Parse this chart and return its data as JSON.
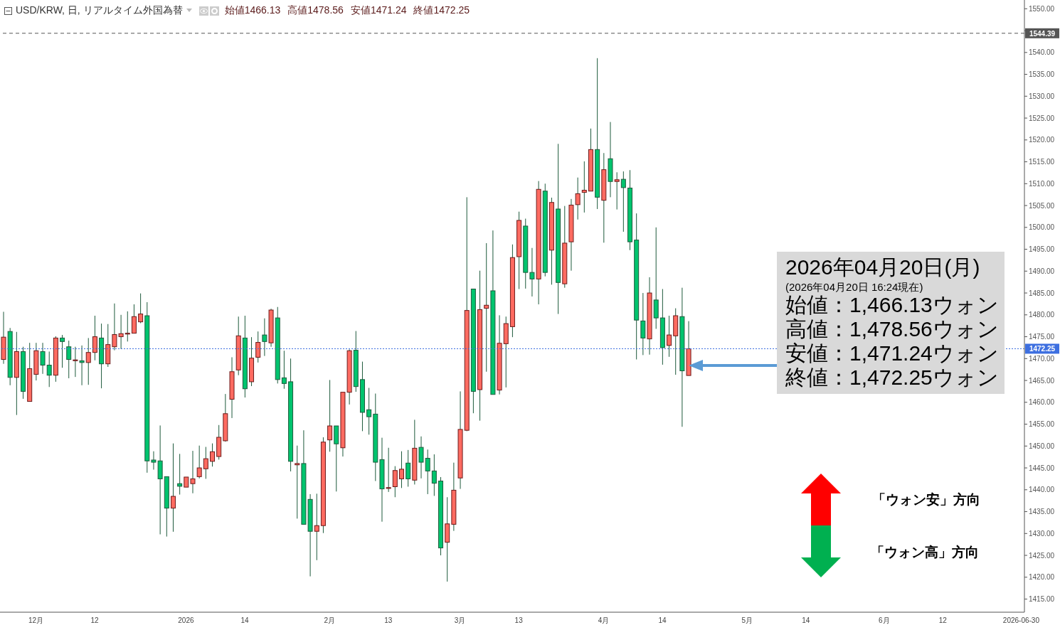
{
  "chart_data": {
    "type": "candlestick",
    "title": "USD/KRW, 日, リアルタイム外国為替",
    "categories": [
      null,
      null,
      null,
      null,
      null,
      "12月",
      null,
      null,
      null,
      null,
      null,
      null,
      null,
      null,
      "12",
      null,
      null,
      null,
      null,
      null,
      null,
      null,
      null,
      null,
      null,
      null,
      null,
      null,
      "2026",
      null,
      null,
      null,
      null,
      null,
      null,
      null,
      null,
      "14",
      null,
      null,
      null,
      null,
      null,
      null,
      null,
      null,
      null,
      null,
      null,
      null,
      "2月",
      null,
      null,
      null,
      null,
      null,
      null,
      null,
      null,
      "13",
      null,
      null,
      null,
      null,
      null,
      null,
      null,
      null,
      null,
      null,
      "3月",
      null,
      null,
      null,
      null,
      null,
      null,
      null,
      null,
      "13",
      null,
      null,
      null,
      null,
      null,
      null,
      null,
      null,
      null,
      null,
      null,
      null,
      "4月",
      null,
      null,
      null,
      null,
      null,
      null,
      null,
      null,
      "14",
      null,
      null,
      null,
      null,
      null,
      null,
      null,
      null,
      null,
      null,
      null,
      null,
      "5月",
      null,
      null,
      null,
      null,
      null,
      null,
      null,
      null,
      "14",
      null,
      null,
      null,
      null,
      null,
      null,
      null,
      null,
      null,
      null,
      null,
      "6月",
      null,
      null,
      null,
      null,
      null,
      null,
      null,
      null,
      "12",
      null,
      null,
      null,
      null,
      null,
      null,
      null,
      null,
      null,
      null,
      null,
      "2026-06-30"
    ],
    "ohlc": [
      [
        1469.8,
        1480.7,
        1468.8,
        1474.9
      ],
      [
        1476.2,
        1477.0,
        1463.9,
        1465.7
      ],
      [
        1465.7,
        1476.1,
        1457.1,
        1471.6
      ],
      [
        1471.6,
        1472.7,
        1460.8,
        1462.5
      ],
      [
        1460.2,
        1473.6,
        1460.2,
        1467.7
      ],
      [
        1466.4,
        1473.6,
        1465.0,
        1471.8
      ],
      [
        1471.6,
        1473.6,
        1466.5,
        1468.5
      ],
      [
        1468.5,
        1471.6,
        1463.5,
        1466.2
      ],
      [
        1466.2,
        1475.1,
        1464.7,
        1474.7
      ],
      [
        1474.7,
        1475.4,
        1467.9,
        1473.9
      ],
      [
        1472.7,
        1474.1,
        1465.5,
        1469.8
      ],
      [
        1469.6,
        1472.7,
        1465.8,
        1469.7
      ],
      [
        1469.5,
        1473.0,
        1463.9,
        1469.1
      ],
      [
        1469.1,
        1474.7,
        1464.0,
        1471.4
      ],
      [
        1471.4,
        1479.8,
        1469.6,
        1475.0
      ],
      [
        1474.7,
        1478.0,
        1463.2,
        1468.8
      ],
      [
        1468.8,
        1477.9,
        1468.1,
        1473.2
      ],
      [
        1472.7,
        1482.6,
        1471.9,
        1475.5
      ],
      [
        1475.0,
        1480.0,
        1472.2,
        1475.7
      ],
      [
        1475.7,
        1480.8,
        1473.9,
        1475.8
      ],
      [
        1475.8,
        1482.4,
        1475.8,
        1479.6
      ],
      [
        1478.4,
        1484.9,
        1478.1,
        1480.2
      ],
      [
        1479.8,
        1482.9,
        1443.9,
        1446.6
      ],
      [
        1446.8,
        1448.8,
        1444.6,
        1446.3
      ],
      [
        1446.6,
        1454.7,
        1429.8,
        1442.5
      ],
      [
        1443.0,
        1443.0,
        1429.3,
        1435.8
      ],
      [
        1435.8,
        1450.6,
        1430.4,
        1438.5
      ],
      [
        1441.4,
        1448.2,
        1438.9,
        1440.8
      ],
      [
        1440.6,
        1442.9,
        1440.6,
        1442.9
      ],
      [
        1441.4,
        1448.9,
        1439.2,
        1442.5
      ],
      [
        1443.0,
        1450.1,
        1442.6,
        1445.0
      ],
      [
        1444.8,
        1449.8,
        1442.5,
        1447.1
      ],
      [
        1446.5,
        1450.6,
        1445.3,
        1448.7
      ],
      [
        1447.6,
        1454.8,
        1446.9,
        1452.0
      ],
      [
        1451.2,
        1461.9,
        1451.0,
        1457.4
      ],
      [
        1460.7,
        1470.3,
        1456.4,
        1467.0
      ],
      [
        1467.4,
        1479.6,
        1466.2,
        1475.2
      ],
      [
        1474.7,
        1479.8,
        1461.1,
        1463.1
      ],
      [
        1464.7,
        1474.9,
        1463.7,
        1470.1
      ],
      [
        1470.3,
        1476.2,
        1469.1,
        1473.7
      ],
      [
        1475.4,
        1479.2,
        1470.6,
        1473.9
      ],
      [
        1473.6,
        1481.4,
        1472.7,
        1481.1
      ],
      [
        1479.3,
        1481.8,
        1464.3,
        1465.2
      ],
      [
        1465.6,
        1471.8,
        1463.1,
        1464.3
      ],
      [
        1464.7,
        1470.0,
        1444.2,
        1446.5
      ],
      [
        1445.7,
        1450.1,
        1433.4,
        1446.0
      ],
      [
        1446.0,
        1453.6,
        1432.1,
        1432.1
      ],
      [
        1437.8,
        1439.0,
        1420.2,
        1430.5
      ],
      [
        1430.5,
        1439.1,
        1423.9,
        1431.8
      ],
      [
        1431.8,
        1452.0,
        1430.1,
        1450.9
      ],
      [
        1451.4,
        1465.1,
        1448.7,
        1454.6
      ],
      [
        1454.6,
        1454.6,
        1439.6,
        1450.5
      ],
      [
        1449.6,
        1462.3,
        1447.6,
        1462.3
      ],
      [
        1462.3,
        1472.1,
        1459.5,
        1471.8
      ],
      [
        1471.9,
        1476.3,
        1462.4,
        1463.6
      ],
      [
        1465.2,
        1469.3,
        1453.4,
        1457.7
      ],
      [
        1458.3,
        1463.3,
        1452.6,
        1456.7
      ],
      [
        1457.3,
        1462.0,
        1442.0,
        1446.3
      ],
      [
        1446.9,
        1451.9,
        1432.7,
        1440.2
      ],
      [
        1440.4,
        1449.6,
        1439.5,
        1440.5
      ],
      [
        1440.7,
        1445.4,
        1438.3,
        1444.4
      ],
      [
        1442.5,
        1448.8,
        1440.4,
        1444.7
      ],
      [
        1446.1,
        1449.1,
        1440.7,
        1442.5
      ],
      [
        1442.2,
        1456.0,
        1441.2,
        1449.5
      ],
      [
        1449.7,
        1452.2,
        1442.6,
        1446.3
      ],
      [
        1447.2,
        1449.2,
        1439.0,
        1444.3
      ],
      [
        1444.3,
        1448.1,
        1438.6,
        1441.5
      ],
      [
        1442.0,
        1442.9,
        1425.0,
        1426.7
      ],
      [
        1428.0,
        1438.3,
        1419.0,
        1432.2
      ],
      [
        1432.1,
        1446.2,
        1430.6,
        1439.9
      ],
      [
        1442.7,
        1462.5,
        1440.2,
        1453.8
      ],
      [
        1453.6,
        1506.9,
        1453.4,
        1481.0
      ],
      [
        1485.9,
        1485.9,
        1457.5,
        1462.5
      ],
      [
        1462.9,
        1490.1,
        1455.8,
        1481.2
      ],
      [
        1481.5,
        1496.4,
        1467.0,
        1482.2
      ],
      [
        1485.5,
        1499.3,
        1461.8,
        1461.8
      ],
      [
        1462.8,
        1479.9,
        1461.8,
        1473.5
      ],
      [
        1473.4,
        1479.6,
        1463.4,
        1478.0
      ],
      [
        1477.3,
        1496.1,
        1474.9,
        1493.1
      ],
      [
        1493.3,
        1503.6,
        1485.9,
        1501.6
      ],
      [
        1500.3,
        1502.0,
        1486.0,
        1489.7
      ],
      [
        1489.7,
        1495.3,
        1484.2,
        1488.2
      ],
      [
        1488.2,
        1510.6,
        1482.4,
        1508.7
      ],
      [
        1508.3,
        1510.0,
        1488.8,
        1489.7
      ],
      [
        1494.8,
        1506.8,
        1486.9,
        1505.7
      ],
      [
        1504.2,
        1519.1,
        1480.2,
        1487.4
      ],
      [
        1487.1,
        1504.9,
        1486.2,
        1496.4
      ],
      [
        1496.7,
        1506.5,
        1490.1,
        1505.1
      ],
      [
        1505.2,
        1511.4,
        1501.8,
        1507.7
      ],
      [
        1508.0,
        1515.1,
        1503.4,
        1508.5
      ],
      [
        1508.3,
        1522.6,
        1508.3,
        1517.8
      ],
      [
        1517.8,
        1538.7,
        1504.2,
        1506.9
      ],
      [
        1506.2,
        1517.0,
        1496.5,
        1513.2
      ],
      [
        1515.7,
        1524.1,
        1506.9,
        1510.5
      ],
      [
        1510.5,
        1512.6,
        1504.1,
        1510.9
      ],
      [
        1511.0,
        1512.8,
        1499.0,
        1509.1
      ],
      [
        1509.0,
        1513.1,
        1494.8,
        1496.7
      ],
      [
        1497.1,
        1503.2,
        1469.8,
        1478.8
      ],
      [
        1478.6,
        1485.0,
        1470.8,
        1474.7
      ],
      [
        1474.5,
        1488.6,
        1470.9,
        1485.0
      ],
      [
        1483.4,
        1500.0,
        1476.8,
        1479.3
      ],
      [
        1479.3,
        1485.9,
        1468.6,
        1472.5
      ],
      [
        1473.0,
        1479.8,
        1470.4,
        1475.4
      ],
      [
        1475.2,
        1481.5,
        1466.3,
        1479.8
      ],
      [
        1479.6,
        1486.2,
        1454.4,
        1467.2
      ],
      [
        1466.13,
        1478.56,
        1466.13,
        1472.25
      ],
      null,
      null,
      null,
      null,
      null,
      null,
      null,
      null,
      null,
      null,
      null,
      null,
      null,
      null,
      null,
      null,
      null,
      null,
      null,
      null,
      null,
      null,
      null,
      null,
      null,
      null,
      null,
      null,
      null,
      null,
      null,
      null,
      null,
      null,
      null,
      null,
      null,
      null,
      null,
      null,
      null,
      null,
      null,
      null,
      null,
      null,
      null,
      null,
      null,
      null,
      null
    ],
    "colors": [
      "#ff6b61",
      "#00c46e",
      "#ff6b61",
      "#00c46e",
      "#ff6b61",
      "#ff6b61",
      "#00c46e",
      "#00c46e",
      "#ff6b61",
      "#00c46e",
      "#00c46e",
      "#ff6b61",
      "#00c46e",
      "#ff6b61",
      "#ff6b61",
      "#00c46e",
      "#ff6b61",
      "#ff6b61",
      "#ff6b61",
      "#ff6b61",
      "#ff6b61",
      "#ff6b61",
      "#00c46e",
      "#00c46e",
      "#00c46e",
      "#00c46e",
      "#ff6b61",
      "#00c46e",
      "#ff6b61",
      "#ff6b61",
      "#ff6b61",
      "#ff6b61",
      "#ff6b61",
      "#ff6b61",
      "#ff6b61",
      "#ff6b61",
      "#ff6b61",
      "#00c46e",
      "#ff6b61",
      "#ff6b61",
      "#00c46e",
      "#ff6b61",
      "#00c46e",
      "#00c46e",
      "#00c46e",
      "#ff6b61",
      "#00c46e",
      "#00c46e",
      "#ff6b61",
      "#ff6b61",
      "#ff6b61",
      "#00c46e",
      "#ff6b61",
      "#ff6b61",
      "#00c46e",
      "#00c46e",
      "#00c46e",
      "#00c46e",
      "#00c46e",
      "#ff6b61",
      "#ff6b61",
      "#ff6b61",
      "#00c46e",
      "#ff6b61",
      "#00c46e",
      "#00c46e",
      "#00c46e",
      "#00c46e",
      "#ff6b61",
      "#ff6b61",
      "#ff6b61",
      "#ff6b61",
      "#00c46e",
      "#ff6b61",
      "#ff6b61",
      "#00c46e",
      "#ff6b61",
      "#ff6b61",
      "#ff6b61",
      "#ff6b61",
      "#00c46e",
      "#00c46e",
      "#ff6b61",
      "#00c46e",
      "#ff6b61",
      "#00c46e",
      "#ff6b61",
      "#ff6b61",
      "#ff6b61",
      "#ff6b61",
      "#ff6b61",
      "#00c46e",
      "#ff6b61",
      "#00c46e",
      "#ff6b61",
      "#00c46e",
      "#00c46e",
      "#00c46e",
      "#00c46e",
      "#ff6b61",
      "#00c46e",
      "#00c46e",
      "#ff6b61",
      "#ff6b61",
      "#00c46e",
      "#ff6b61",
      null,
      null,
      null,
      null,
      null,
      null,
      null,
      null,
      null,
      null,
      null,
      null,
      null,
      null,
      null,
      null,
      null,
      null,
      null,
      null,
      null,
      null,
      null,
      null,
      null,
      null,
      null,
      null,
      null,
      null,
      null,
      null,
      null,
      null,
      null,
      null,
      null,
      null,
      null,
      null,
      null,
      null,
      null,
      null,
      null,
      null,
      null,
      null,
      null,
      null,
      null
    ],
    "ylim": [
      1412,
      1552
    ],
    "yticks": [
      {
        "value": 1415,
        "label": "1415.00"
      },
      {
        "value": 1420,
        "label": "1420.00"
      },
      {
        "value": 1425,
        "label": "1425.00"
      },
      {
        "value": 1430,
        "label": "1430.00"
      },
      {
        "value": 1435,
        "label": "1435.00"
      },
      {
        "value": 1440,
        "label": "1440.00"
      },
      {
        "value": 1445,
        "label": "1445.00"
      },
      {
        "value": 1450,
        "label": "1450.00"
      },
      {
        "value": 1455,
        "label": "1455.00"
      },
      {
        "value": 1460,
        "label": "1460.00"
      },
      {
        "value": 1465,
        "label": "1465.00"
      },
      {
        "value": 1470,
        "label": "1470.00"
      },
      {
        "value": 1475,
        "label": "1475.00"
      },
      {
        "value": 1480,
        "label": "1480.00"
      },
      {
        "value": 1485,
        "label": "1485.00"
      },
      {
        "value": 1490,
        "label": "1490.00"
      },
      {
        "value": 1495,
        "label": "1495.00"
      },
      {
        "value": 1500,
        "label": "1500.00"
      },
      {
        "value": 1505,
        "label": "1505.00"
      },
      {
        "value": 1510,
        "label": "1510.00"
      },
      {
        "value": 1515,
        "label": "1515.00"
      },
      {
        "value": 1520,
        "label": "1520.00"
      },
      {
        "value": 1525,
        "label": "1525.00"
      },
      {
        "value": 1530,
        "label": "1530.00"
      },
      {
        "value": 1535,
        "label": "1535.00"
      },
      {
        "value": 1540,
        "label": "1540.00"
      },
      {
        "value": 1545,
        "label": null
      },
      {
        "value": 1550,
        "label": "1550.00"
      }
    ],
    "ref_lines": [
      {
        "axis": "y",
        "value": 1544.39,
        "label": "1544.39",
        "color": "#555555",
        "line_style": "dashed"
      },
      {
        "axis": "y",
        "value": 1472.25,
        "label": "1472.25",
        "color": "#3d6fe0",
        "line_style": "dotted"
      }
    ],
    "annotations": [
      "始値1466.13",
      "高値1478.56",
      "安値1471.24",
      "終値1472.25",
      "2026年04月20日(月)",
      "(2026年04月20日 16:24現在)",
      "始値：1,466.13ウォン",
      "高値：1,478.56ウォン",
      "安値：1,471.24ウォン",
      "終値：1,472.25ウォン",
      "「ウォン安」方向",
      "「ウォン高」方向"
    ]
  }
}
